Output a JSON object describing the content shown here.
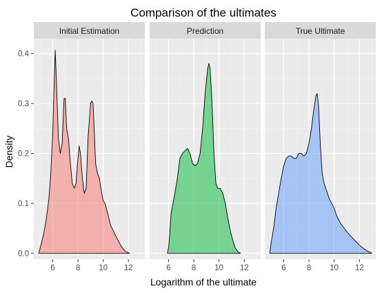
{
  "chart_data": {
    "type": "area",
    "title": "Comparison of the ultimates",
    "xlabel": "Logarithm of the ultimate",
    "ylabel": "Density",
    "xlim": [
      4.5,
      13.3
    ],
    "ylim": [
      -0.012,
      0.43
    ],
    "x_ticks": [
      6,
      8,
      10,
      12
    ],
    "y_ticks": [
      0.0,
      0.1,
      0.2,
      0.3,
      0.4
    ],
    "y_tick_labels": [
      "0.0",
      "0.1",
      "0.2",
      "0.3",
      "0.4"
    ],
    "grid": true,
    "facets": [
      {
        "name": "Initial Estimation",
        "color": "#F8766D",
        "points": [
          [
            4.9,
            0.0
          ],
          [
            5.1,
            0.02
          ],
          [
            5.3,
            0.04
          ],
          [
            5.5,
            0.07
          ],
          [
            5.7,
            0.11
          ],
          [
            5.85,
            0.16
          ],
          [
            6.0,
            0.24
          ],
          [
            6.1,
            0.33
          ],
          [
            6.2,
            0.407
          ],
          [
            6.3,
            0.34
          ],
          [
            6.45,
            0.23
          ],
          [
            6.6,
            0.2
          ],
          [
            6.75,
            0.22
          ],
          [
            6.9,
            0.31
          ],
          [
            7.0,
            0.31
          ],
          [
            7.1,
            0.25
          ],
          [
            7.25,
            0.23
          ],
          [
            7.4,
            0.18
          ],
          [
            7.55,
            0.14
          ],
          [
            7.7,
            0.13
          ],
          [
            7.85,
            0.14
          ],
          [
            8.0,
            0.19
          ],
          [
            8.1,
            0.215
          ],
          [
            8.2,
            0.2
          ],
          [
            8.35,
            0.15
          ],
          [
            8.5,
            0.12
          ],
          [
            8.65,
            0.13
          ],
          [
            8.8,
            0.23
          ],
          [
            9.0,
            0.3
          ],
          [
            9.1,
            0.305
          ],
          [
            9.2,
            0.3
          ],
          [
            9.3,
            0.24
          ],
          [
            9.4,
            0.18
          ],
          [
            9.55,
            0.16
          ],
          [
            9.7,
            0.15
          ],
          [
            9.85,
            0.125
          ],
          [
            10.0,
            0.105
          ],
          [
            10.15,
            0.1
          ],
          [
            10.3,
            0.085
          ],
          [
            10.45,
            0.07
          ],
          [
            10.6,
            0.055
          ],
          [
            10.8,
            0.045
          ],
          [
            11.0,
            0.035
          ],
          [
            11.2,
            0.025
          ],
          [
            11.4,
            0.015
          ],
          [
            11.6,
            0.008
          ],
          [
            11.8,
            0.003
          ],
          [
            12.1,
            0.0
          ]
        ]
      },
      {
        "name": "Prediction",
        "color": "#00BA38",
        "points": [
          [
            5.9,
            0.0
          ],
          [
            6.0,
            0.01
          ],
          [
            6.1,
            0.04
          ],
          [
            6.2,
            0.08
          ],
          [
            6.35,
            0.1
          ],
          [
            6.5,
            0.12
          ],
          [
            6.7,
            0.15
          ],
          [
            6.9,
            0.19
          ],
          [
            7.1,
            0.2
          ],
          [
            7.3,
            0.205
          ],
          [
            7.5,
            0.21
          ],
          [
            7.7,
            0.2
          ],
          [
            7.9,
            0.18
          ],
          [
            8.1,
            0.175
          ],
          [
            8.3,
            0.18
          ],
          [
            8.5,
            0.2
          ],
          [
            8.7,
            0.25
          ],
          [
            8.9,
            0.32
          ],
          [
            9.1,
            0.37
          ],
          [
            9.2,
            0.38
          ],
          [
            9.3,
            0.37
          ],
          [
            9.45,
            0.3
          ],
          [
            9.6,
            0.2
          ],
          [
            9.75,
            0.14
          ],
          [
            9.9,
            0.13
          ],
          [
            10.1,
            0.13
          ],
          [
            10.3,
            0.12
          ],
          [
            10.5,
            0.1
          ],
          [
            10.7,
            0.07
          ],
          [
            10.9,
            0.045
          ],
          [
            11.1,
            0.025
          ],
          [
            11.3,
            0.01
          ],
          [
            11.5,
            0.003
          ],
          [
            11.7,
            0.0
          ]
        ]
      },
      {
        "name": "True Ultimate",
        "color": "#619CFF",
        "points": [
          [
            4.9,
            0.0
          ],
          [
            5.0,
            0.02
          ],
          [
            5.2,
            0.05
          ],
          [
            5.4,
            0.09
          ],
          [
            5.6,
            0.12
          ],
          [
            5.8,
            0.15
          ],
          [
            6.0,
            0.175
          ],
          [
            6.2,
            0.19
          ],
          [
            6.4,
            0.195
          ],
          [
            6.6,
            0.195
          ],
          [
            6.8,
            0.19
          ],
          [
            7.0,
            0.19
          ],
          [
            7.2,
            0.2
          ],
          [
            7.4,
            0.2
          ],
          [
            7.6,
            0.195
          ],
          [
            7.8,
            0.2
          ],
          [
            8.0,
            0.22
          ],
          [
            8.2,
            0.25
          ],
          [
            8.4,
            0.29
          ],
          [
            8.55,
            0.315
          ],
          [
            8.65,
            0.32
          ],
          [
            8.75,
            0.3
          ],
          [
            8.9,
            0.22
          ],
          [
            9.05,
            0.16
          ],
          [
            9.2,
            0.14
          ],
          [
            9.4,
            0.125
          ],
          [
            9.6,
            0.11
          ],
          [
            9.8,
            0.1
          ],
          [
            10.0,
            0.09
          ],
          [
            10.2,
            0.075
          ],
          [
            10.5,
            0.06
          ],
          [
            10.8,
            0.05
          ],
          [
            11.1,
            0.04
          ],
          [
            11.4,
            0.032
          ],
          [
            11.7,
            0.024
          ],
          [
            12.0,
            0.016
          ],
          [
            12.3,
            0.01
          ],
          [
            12.6,
            0.005
          ],
          [
            12.9,
            0.001
          ],
          [
            13.0,
            0.0
          ]
        ]
      }
    ]
  }
}
